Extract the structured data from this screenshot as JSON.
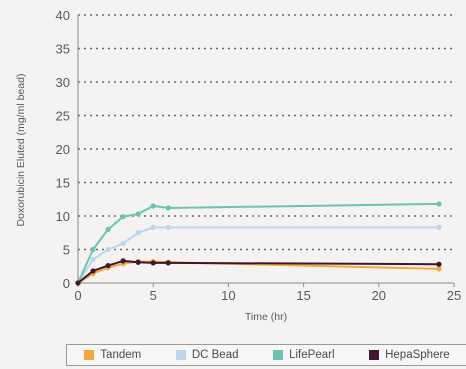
{
  "chart_data": {
    "type": "line",
    "title": "",
    "xlabel": "Time (hr)",
    "ylabel": "Doxorubicin Eluted (mg/ml bead)",
    "xlim": [
      0,
      25
    ],
    "ylim": [
      0,
      40
    ],
    "xticks": [
      0,
      5,
      10,
      15,
      20,
      25
    ],
    "yticks": [
      0,
      5,
      10,
      15,
      20,
      25,
      30,
      35,
      40
    ],
    "grid": "horizontal-dotted",
    "legend_position": "bottom",
    "series": [
      {
        "name": "Tandem",
        "color": "#f5a83a",
        "points": [
          [
            0,
            0
          ],
          [
            1,
            1.4
          ],
          [
            2,
            2.3
          ],
          [
            3,
            2.9
          ],
          [
            4,
            3.2
          ],
          [
            5,
            3.2
          ],
          [
            6,
            3.1
          ],
          [
            24,
            2.1
          ]
        ]
      },
      {
        "name": "DC Bead",
        "color": "#bcd6ef",
        "points": [
          [
            0,
            0
          ],
          [
            1,
            3.5
          ],
          [
            2,
            5.0
          ],
          [
            3,
            5.9
          ],
          [
            4,
            7.5
          ],
          [
            5,
            8.3
          ],
          [
            6,
            8.3
          ],
          [
            24,
            8.3
          ]
        ]
      },
      {
        "name": "LifePearl",
        "color": "#6cc3b3",
        "points": [
          [
            0,
            0
          ],
          [
            1,
            5.0
          ],
          [
            2,
            8.0
          ],
          [
            3,
            9.9
          ],
          [
            4,
            10.3
          ],
          [
            5,
            11.5
          ],
          [
            6,
            11.2
          ],
          [
            24,
            11.8
          ]
        ]
      },
      {
        "name": "HepaSphere",
        "color": "#3b1730",
        "points": [
          [
            0,
            0
          ],
          [
            1,
            1.8
          ],
          [
            2,
            2.6
          ],
          [
            3,
            3.3
          ],
          [
            4,
            3.1
          ],
          [
            5,
            3.0
          ],
          [
            6,
            3.0
          ],
          [
            24,
            2.8
          ]
        ]
      }
    ]
  }
}
